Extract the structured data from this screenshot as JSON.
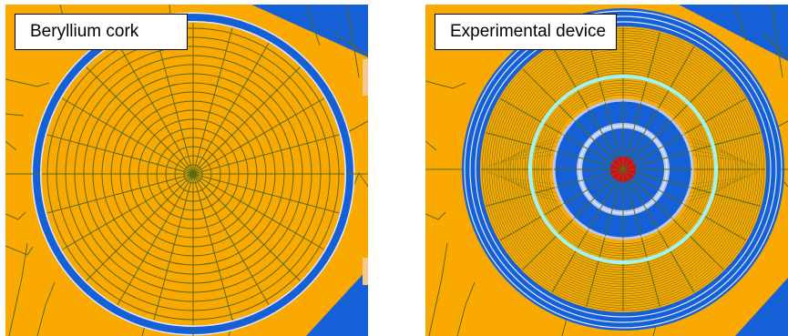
{
  "panels": {
    "left": {
      "label": "Beryllium cork"
    },
    "right": {
      "label": "Experimental device"
    }
  },
  "colors": {
    "background": "#f9a900",
    "mesh_line": "#5a6a14",
    "ring_blue": "#1560d6",
    "ring_white": "#dfe9ff",
    "ring_cyan": "#9ff4f4",
    "ring_light_blue": "#b9c9ee",
    "core_red": "#d90a1a"
  }
}
